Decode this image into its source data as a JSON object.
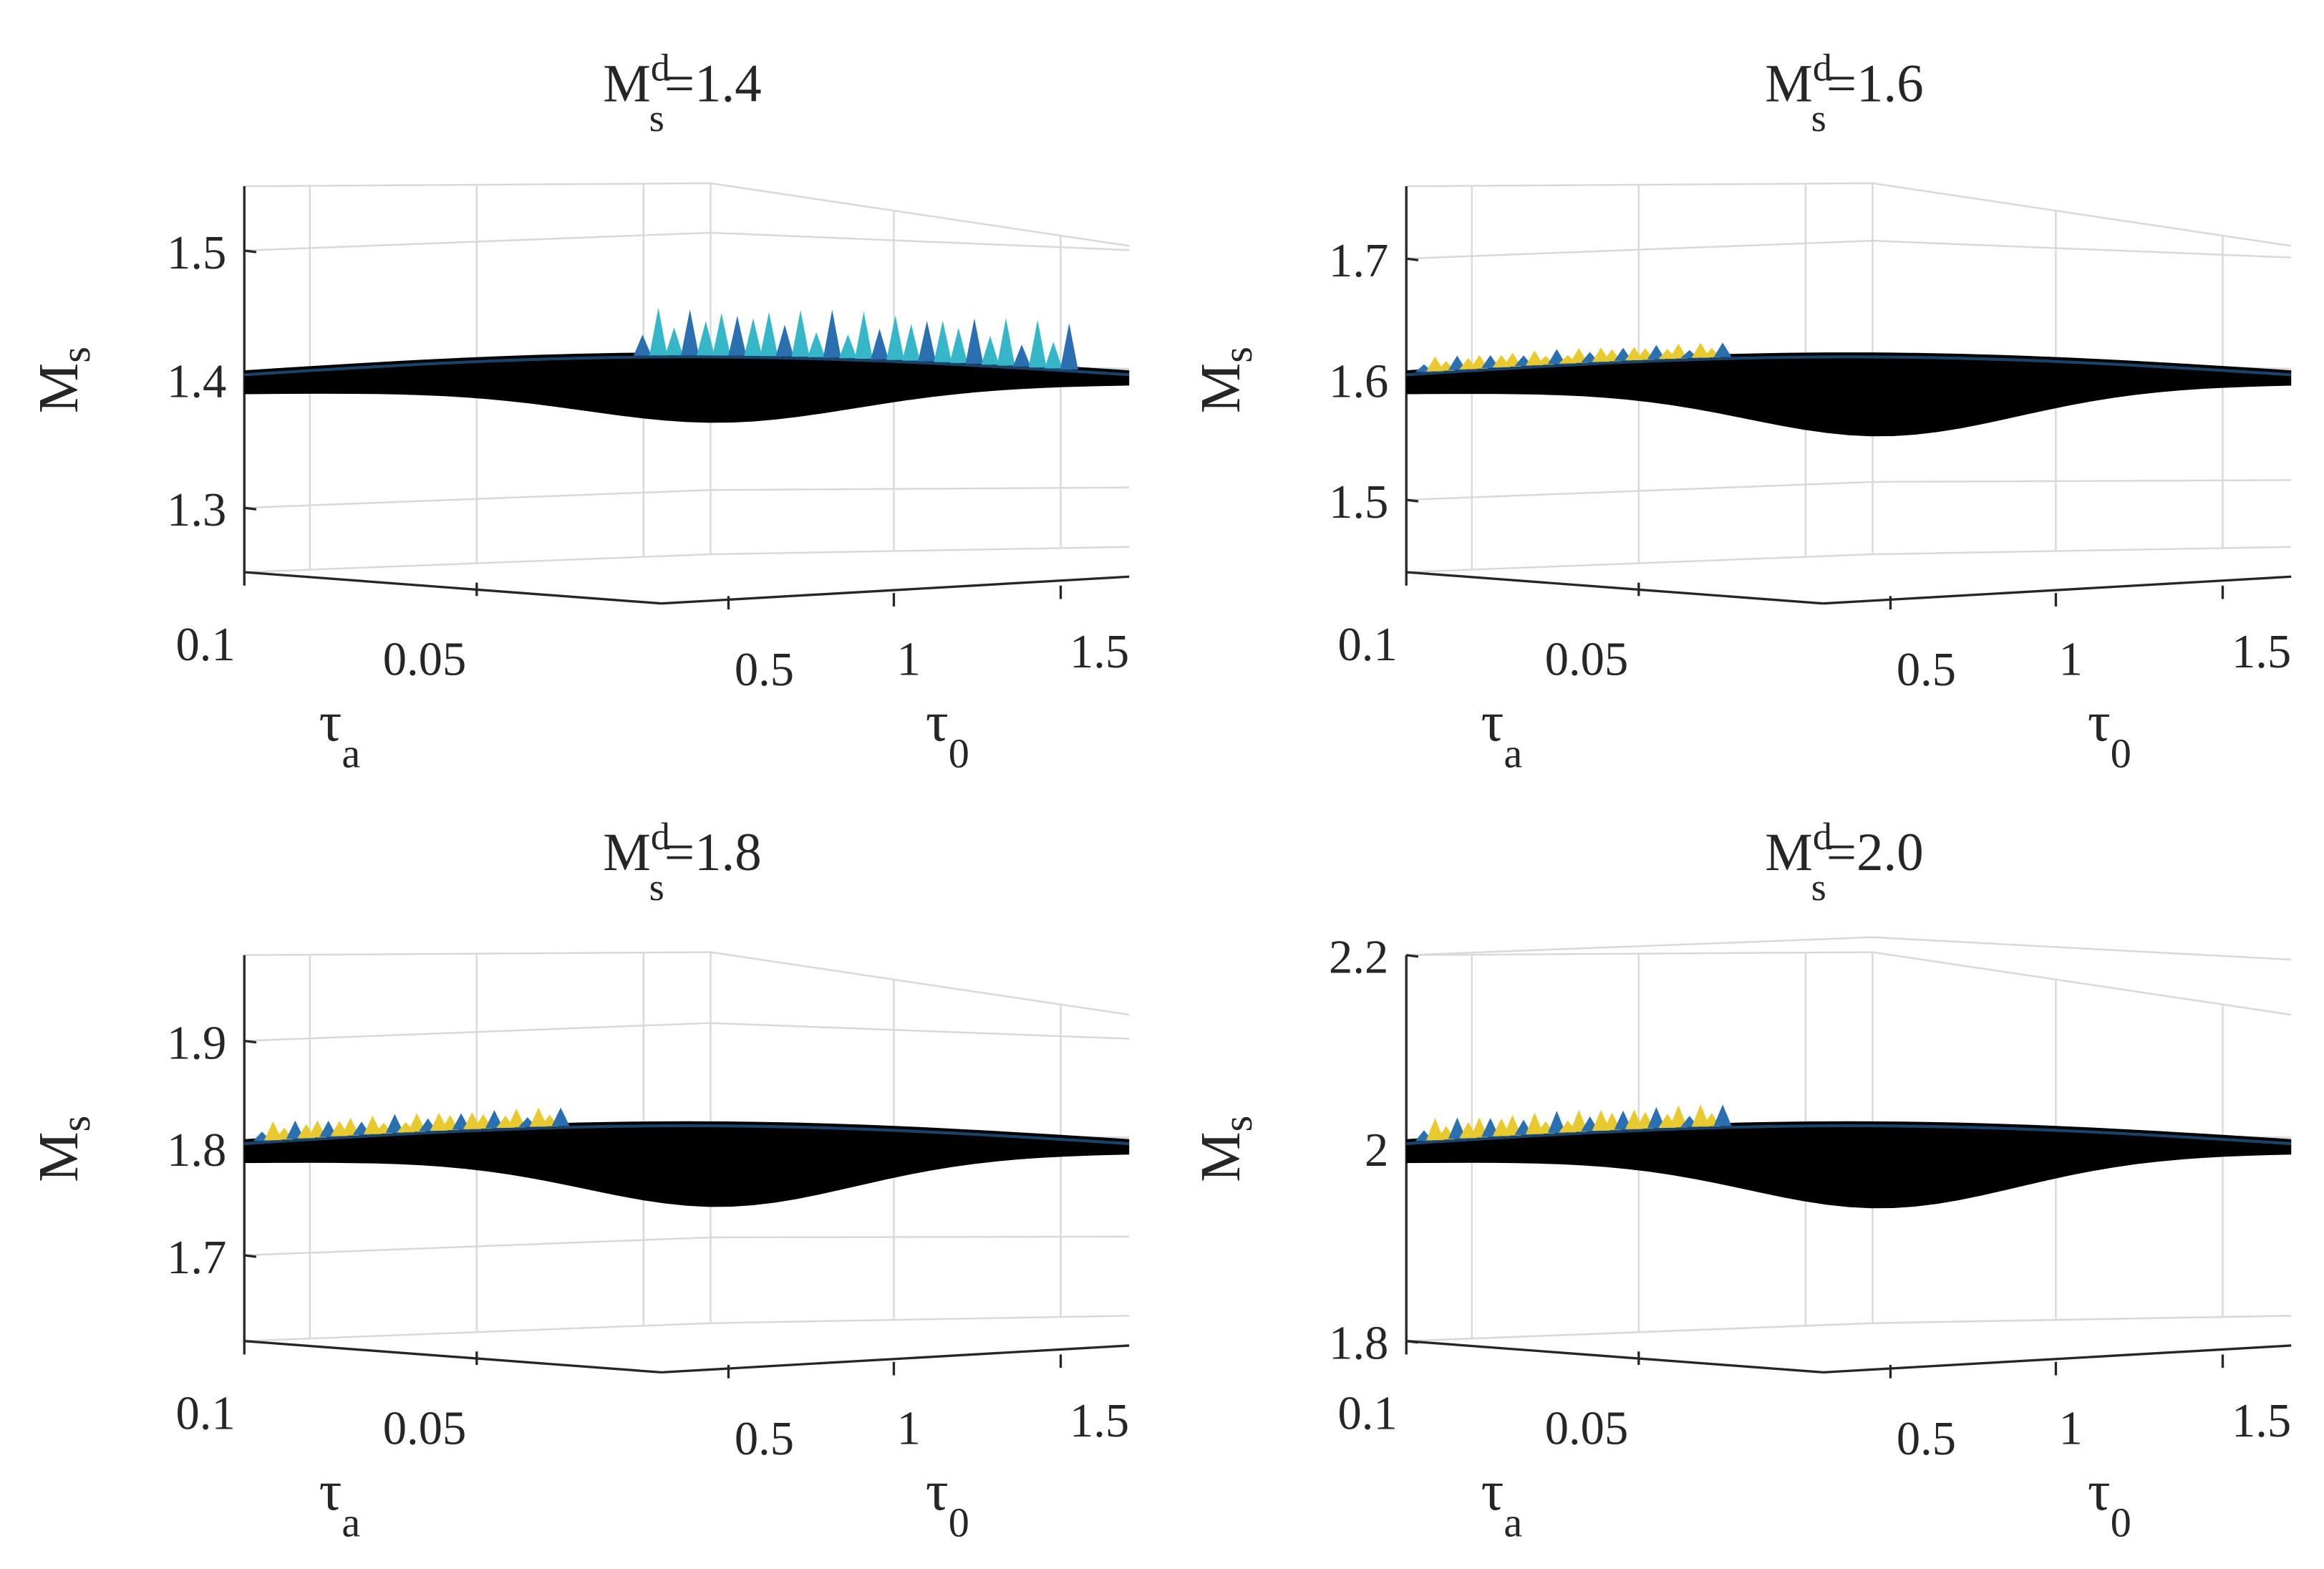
{
  "colors": {
    "surface_dark": "#000000",
    "surface_blue": "#2a6fb0",
    "surface_cyan": "#35b7c9",
    "surface_yellow": "#e8c930",
    "grid": "#d9d9d9",
    "axis": "#262626"
  },
  "chart_data": [
    {
      "type": "surface3d",
      "title": {
        "base": "M",
        "sup": "d",
        "sub": "s",
        "rest": "=1.4"
      },
      "zlabel": {
        "base": "M",
        "sub": "s"
      },
      "xlabel": {
        "base": "τ",
        "sub": "a"
      },
      "ylabel": {
        "base": "τ",
        "sub": "0"
      },
      "xlim": [
        0.01,
        0.1
      ],
      "ylim": [
        0.3,
        1.6
      ],
      "zlim": [
        1.25,
        1.55
      ],
      "ta_ticks": [
        "0.1",
        "0.05"
      ],
      "t0_ticks": [
        "0.5",
        "1",
        "1.5"
      ],
      "z_ticks": [
        "1.5",
        "1.4",
        "1.3"
      ],
      "z_tick_values": [
        1.5,
        1.4,
        1.3
      ],
      "surface_mean": 1.4,
      "dip_depth": 0.02,
      "ripple_max": 0.035,
      "ripple_region": "high tau_0 edge"
    },
    {
      "type": "surface3d",
      "title": {
        "base": "M",
        "sup": "d",
        "sub": "s",
        "rest": "=1.6"
      },
      "zlabel": {
        "base": "M",
        "sub": "s"
      },
      "xlabel": {
        "base": "τ",
        "sub": "a"
      },
      "ylabel": {
        "base": "τ",
        "sub": "0"
      },
      "xlim": [
        0.01,
        0.1
      ],
      "ylim": [
        0.3,
        1.6
      ],
      "zlim": [
        1.44,
        1.76
      ],
      "ta_ticks": [
        "0.1",
        "0.05"
      ],
      "t0_ticks": [
        "0.5",
        "1",
        "1.5"
      ],
      "z_ticks": [
        "1.7",
        "1.6",
        "1.5"
      ],
      "z_tick_values": [
        1.7,
        1.6,
        1.5
      ],
      "surface_mean": 1.6,
      "dip_depth": 0.03,
      "ripple_max": 0.01,
      "ripple_region": "low tau_a edge"
    },
    {
      "type": "surface3d",
      "title": {
        "base": "M",
        "sup": "d",
        "sub": "s",
        "rest": "=1.8"
      },
      "zlabel": {
        "base": "M",
        "sub": "s"
      },
      "xlabel": {
        "base": "τ",
        "sub": "a"
      },
      "ylabel": {
        "base": "τ",
        "sub": "0"
      },
      "xlim": [
        0.01,
        0.1
      ],
      "ylim": [
        0.3,
        1.6
      ],
      "zlim": [
        1.62,
        1.98
      ],
      "ta_ticks": [
        "0.1",
        "0.05"
      ],
      "t0_ticks": [
        "0.5",
        "1",
        "1.5"
      ],
      "z_ticks": [
        "1.9",
        "1.8",
        "1.7"
      ],
      "z_tick_values": [
        1.9,
        1.8,
        1.7
      ],
      "surface_mean": 1.8,
      "dip_depth": 0.035,
      "ripple_max": 0.015,
      "ripple_region": "low tau_a edge"
    },
    {
      "type": "surface3d",
      "title": {
        "base": "M",
        "sup": "d",
        "sub": "s",
        "rest": "=2.0"
      },
      "zlabel": {
        "base": "M",
        "sub": "s"
      },
      "xlabel": {
        "base": "τ",
        "sub": "a"
      },
      "ylabel": {
        "base": "τ",
        "sub": "0"
      },
      "xlim": [
        0.01,
        0.1
      ],
      "ylim": [
        0.3,
        1.6
      ],
      "zlim": [
        1.8,
        2.2
      ],
      "ta_ticks": [
        "0.1",
        "0.05"
      ],
      "t0_ticks": [
        "0.5",
        "1",
        "1.5"
      ],
      "z_ticks": [
        "2.2",
        "2",
        "1.8"
      ],
      "z_tick_values": [
        2.2,
        2.0,
        1.8
      ],
      "surface_mean": 2.0,
      "dip_depth": 0.04,
      "ripple_max": 0.02,
      "ripple_region": "low tau_a edge"
    }
  ]
}
